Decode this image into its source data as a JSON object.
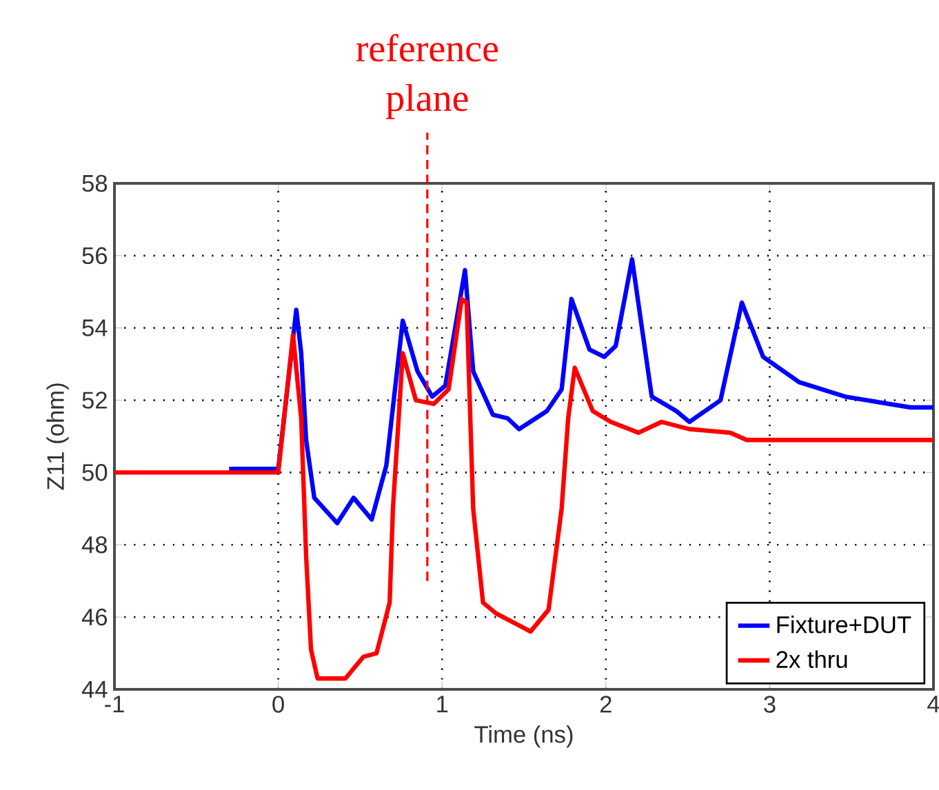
{
  "chart_data": {
    "type": "line",
    "xlabel": "Time (ns)",
    "ylabel": "Z11 (ohm)",
    "xlim": [
      -1,
      4
    ],
    "ylim": [
      44,
      58
    ],
    "xticks": [
      -1,
      0,
      1,
      2,
      3,
      4
    ],
    "yticks": [
      44,
      46,
      48,
      50,
      52,
      54,
      56,
      58
    ],
    "grid": true,
    "legend": "bottom right",
    "line_style": "solid",
    "marker": "none",
    "series": [
      {
        "name": "Fixture+DUT",
        "color": "#0000ff",
        "x": [
          -0.3,
          0.0,
          0.11,
          0.14,
          0.17,
          0.22,
          0.36,
          0.46,
          0.57,
          0.66,
          0.76,
          0.85,
          0.94,
          1.02,
          1.14,
          1.19,
          1.31,
          1.4,
          1.47,
          1.64,
          1.73,
          1.79,
          1.9,
          1.99,
          2.06,
          2.16,
          2.28,
          2.43,
          2.51,
          2.7,
          2.83,
          2.96,
          3.18,
          3.46,
          3.86,
          4.0
        ],
        "values": [
          50.1,
          50.1,
          54.5,
          53.3,
          50.9,
          49.3,
          48.6,
          49.3,
          48.7,
          50.2,
          54.2,
          52.8,
          52.1,
          52.4,
          55.6,
          52.8,
          51.6,
          51.5,
          51.2,
          51.7,
          52.3,
          54.8,
          53.4,
          53.2,
          53.5,
          55.9,
          52.1,
          51.7,
          51.4,
          52.0,
          54.7,
          53.2,
          52.5,
          52.1,
          51.8,
          51.8
        ]
      },
      {
        "name": "2x thru",
        "color": "#ff0000",
        "x": [
          -1,
          0.0,
          0.09,
          0.14,
          0.17,
          0.2,
          0.24,
          0.41,
          0.52,
          0.6,
          0.68,
          0.7,
          0.76,
          0.84,
          0.95,
          1.04,
          1.12,
          1.15,
          1.19,
          1.25,
          1.33,
          1.54,
          1.65,
          1.73,
          1.77,
          1.81,
          1.92,
          2.03,
          2.2,
          2.34,
          2.51,
          2.76,
          2.86,
          4.0
        ],
        "values": [
          50,
          50,
          53.8,
          51.5,
          47.7,
          45.1,
          44.3,
          44.3,
          44.9,
          45.0,
          46.4,
          49.0,
          53.3,
          52.0,
          51.9,
          52.3,
          54.8,
          54.7,
          49.0,
          46.4,
          46.1,
          45.6,
          46.2,
          49.0,
          51.5,
          52.9,
          51.7,
          51.4,
          51.1,
          51.4,
          51.2,
          51.1,
          50.9,
          50.9
        ]
      }
    ],
    "ref_lines": [
      {
        "axis": "x",
        "value": 0.91,
        "label": "reference plane",
        "color": "#ff0000",
        "line_style": "dashed"
      }
    ]
  }
}
